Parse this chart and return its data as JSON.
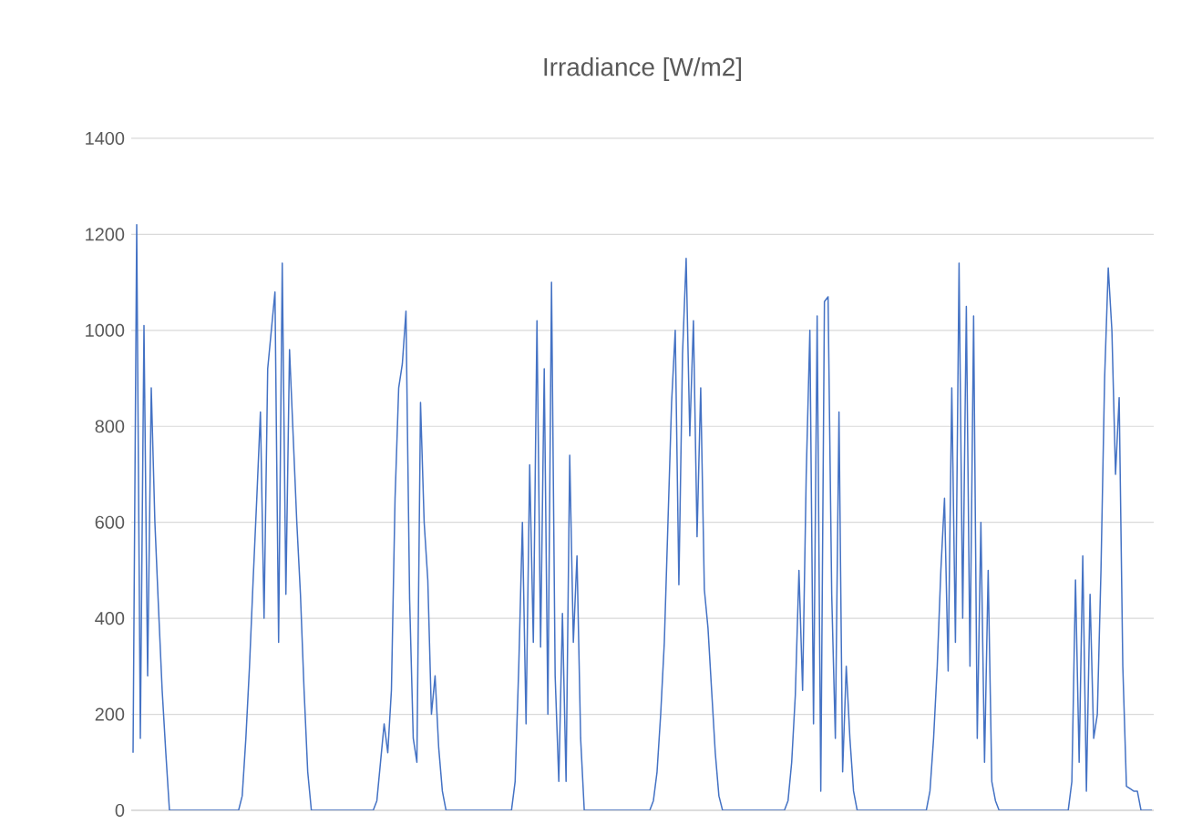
{
  "chart_data": {
    "type": "line",
    "title": "Irradiance [W/m2]",
    "categories": [
      null,
      null,
      null,
      null,
      null,
      null,
      null,
      null,
      null,
      null,
      null,
      null,
      null,
      null,
      null,
      null,
      null,
      null,
      null,
      null,
      null,
      null,
      null,
      null,
      null,
      null,
      null,
      null,
      null,
      null,
      null,
      null,
      null,
      null,
      null,
      null,
      null,
      null,
      null,
      null,
      null,
      null,
      null,
      null,
      null,
      null,
      null,
      null,
      null,
      null,
      null,
      null,
      null,
      null,
      null,
      null,
      null,
      null,
      null,
      null,
      null,
      null,
      null,
      null,
      null,
      null,
      null,
      null,
      null,
      null,
      null,
      null,
      null,
      null,
      null,
      null,
      null,
      null,
      null,
      null,
      null,
      null,
      null,
      null,
      null,
      null,
      null,
      null,
      null,
      null,
      null,
      null,
      null,
      null,
      null,
      null,
      null,
      null,
      null,
      null,
      null,
      null,
      null,
      null,
      null,
      null,
      null,
      null,
      null,
      null,
      null,
      null,
      null,
      null,
      null,
      null,
      null,
      null,
      null,
      null,
      null,
      null,
      null,
      null,
      null,
      null,
      null,
      null,
      null,
      null,
      null,
      null,
      null,
      null,
      null,
      null,
      null,
      null,
      null,
      null,
      null,
      null,
      null,
      null,
      null,
      null,
      null,
      null,
      null,
      null,
      null,
      null,
      null,
      null,
      null,
      null,
      null,
      null,
      null,
      null,
      null,
      null,
      null,
      null,
      null,
      null,
      null,
      null,
      null,
      null,
      null,
      null,
      null,
      null,
      null,
      null,
      null,
      null,
      null,
      null,
      null,
      null,
      null,
      null,
      null,
      null,
      null,
      null,
      null,
      null,
      null,
      null,
      null,
      null,
      null,
      null,
      null,
      null,
      null,
      null,
      null,
      null,
      null,
      null,
      null,
      null,
      null,
      null,
      null,
      null,
      null,
      null,
      null,
      null,
      null,
      null,
      null,
      null,
      null,
      null,
      null,
      null,
      null,
      null,
      null,
      null,
      null,
      null,
      null,
      null,
      null,
      null,
      null,
      null,
      null,
      null,
      null,
      null,
      null,
      null,
      null,
      null,
      null,
      null,
      null,
      null,
      null,
      null,
      null,
      null,
      null,
      null,
      null,
      null,
      null,
      null,
      null,
      null,
      null,
      null,
      null,
      null,
      null,
      null,
      null,
      null,
      null,
      null,
      null,
      null,
      null,
      null,
      null,
      null,
      null,
      null,
      null,
      null,
      null,
      null,
      null
    ],
    "series": [
      {
        "color": "#4472c4",
        "values": [
          120,
          1220,
          150,
          1010,
          280,
          880,
          600,
          420,
          250,
          120,
          0,
          0,
          0,
          0,
          0,
          0,
          0,
          0,
          0,
          0,
          0,
          0,
          0,
          0,
          0,
          0,
          0,
          0,
          0,
          0,
          30,
          150,
          300,
          480,
          650,
          830,
          400,
          920,
          1000,
          1080,
          350,
          1140,
          450,
          960,
          780,
          600,
          450,
          250,
          80,
          0,
          0,
          0,
          0,
          0,
          0,
          0,
          0,
          0,
          0,
          0,
          0,
          0,
          0,
          0,
          0,
          0,
          0,
          20,
          100,
          180,
          120,
          250,
          650,
          880,
          930,
          1040,
          440,
          150,
          100,
          850,
          600,
          480,
          200,
          280,
          130,
          40,
          0,
          0,
          0,
          0,
          0,
          0,
          0,
          0,
          0,
          0,
          0,
          0,
          0,
          0,
          0,
          0,
          0,
          0,
          0,
          60,
          300,
          600,
          180,
          720,
          350,
          1020,
          340,
          920,
          200,
          1100,
          280,
          60,
          410,
          60,
          740,
          350,
          530,
          150,
          0,
          0,
          0,
          0,
          0,
          0,
          0,
          0,
          0,
          0,
          0,
          0,
          0,
          0,
          0,
          0,
          0,
          0,
          0,
          20,
          80,
          200,
          350,
          600,
          850,
          1000,
          470,
          950,
          1150,
          780,
          1020,
          570,
          880,
          460,
          380,
          250,
          120,
          30,
          0,
          0,
          0,
          0,
          0,
          0,
          0,
          0,
          0,
          0,
          0,
          0,
          0,
          0,
          0,
          0,
          0,
          0,
          20,
          100,
          240,
          500,
          250,
          700,
          1000,
          180,
          1030,
          40,
          1060,
          1070,
          450,
          150,
          830,
          80,
          300,
          150,
          40,
          0,
          0,
          0,
          0,
          0,
          0,
          0,
          0,
          0,
          0,
          0,
          0,
          0,
          0,
          0,
          0,
          0,
          0,
          0,
          0,
          40,
          150,
          300,
          500,
          650,
          290,
          880,
          350,
          1140,
          400,
          1050,
          300,
          1030,
          150,
          600,
          100,
          500,
          60,
          20,
          0,
          0,
          0,
          0,
          0,
          0,
          0,
          0,
          0,
          0,
          0,
          0,
          0,
          0,
          0,
          0,
          0,
          0,
          0,
          0,
          60,
          480,
          100,
          530,
          40,
          450,
          150,
          200,
          500,
          900,
          1130,
          1000,
          700,
          860,
          300,
          50,
          45,
          40,
          40,
          0,
          0,
          0,
          0
        ]
      }
    ],
    "ylim": [
      0,
      1400
    ],
    "yticks": [
      0,
      200,
      400,
      600,
      800,
      1000,
      1200,
      1400
    ],
    "grid": "y"
  }
}
